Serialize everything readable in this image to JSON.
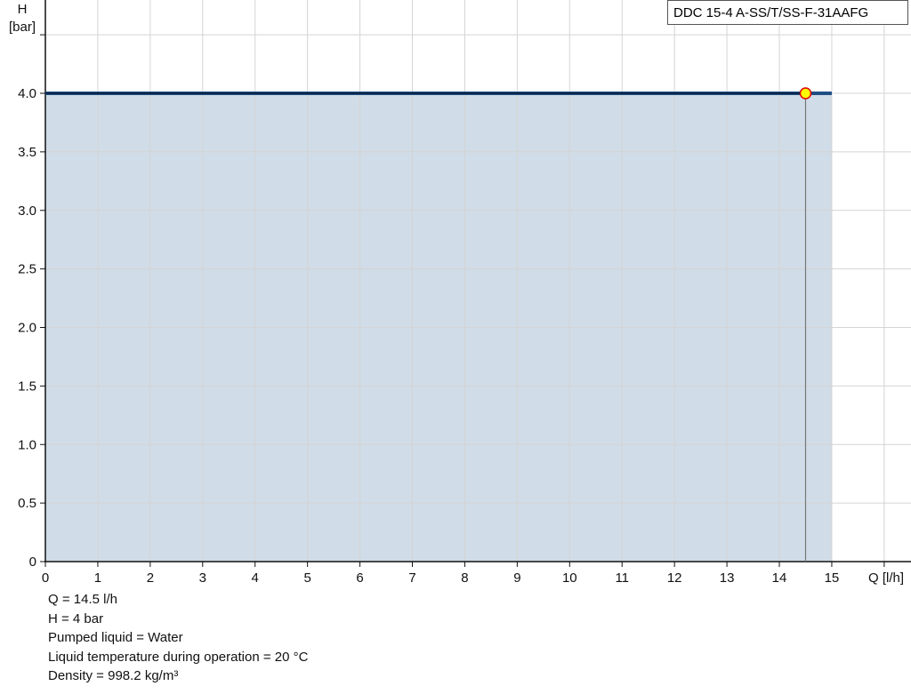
{
  "chart_data": {
    "type": "area",
    "title": "",
    "legend": "DDC 15-4 A-SS/T/SS-F-31AAFG",
    "xlabel": "Q [l/h]",
    "ylabel_line1": "H",
    "ylabel_line2": "[bar]",
    "xlim": [
      0,
      16.3
    ],
    "ylim": [
      0,
      4.8
    ],
    "grid": true,
    "x_ticks": [
      0,
      1,
      2,
      3,
      4,
      5,
      6,
      7,
      8,
      9,
      10,
      11,
      12,
      13,
      14,
      15
    ],
    "y_ticks": [
      0,
      0.5,
      1.0,
      1.5,
      2.0,
      2.5,
      3.0,
      3.5,
      4.0
    ],
    "y_tick_labels": [
      "0",
      "0.5",
      "1.0",
      "1.5",
      "2.0",
      "2.5",
      "3.0",
      "3.5",
      "4.0"
    ],
    "series": [
      {
        "x": [
          0,
          15
        ],
        "y": [
          4.0,
          4.0
        ]
      }
    ],
    "operating_point": {
      "x": 14.5,
      "y": 4.0
    },
    "colors": {
      "fill": "#d0dce7",
      "line": "#1f4e85",
      "curve_dark": "#0a1a33",
      "point_fill": "#ffff00",
      "point_stroke": "#e00000"
    }
  },
  "info": [
    "Q = 14.5 l/h",
    "H = 4 bar",
    "Pumped liquid = Water",
    "Liquid temperature during operation = 20 °C",
    "Density = 998.2 kg/m³"
  ]
}
